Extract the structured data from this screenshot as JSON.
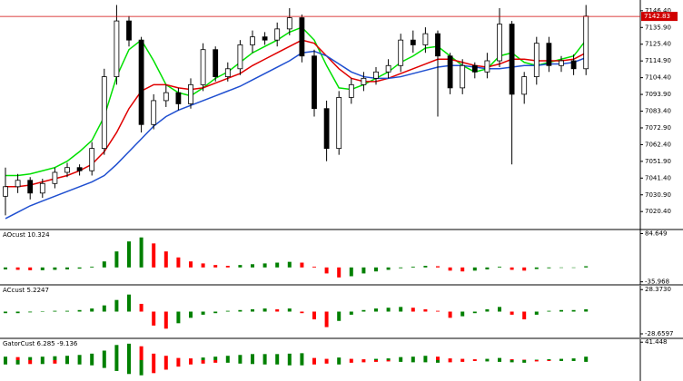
{
  "chart_data": [
    {
      "type": "candlestick",
      "open": [
        7030,
        7036,
        7040,
        7032,
        7038,
        7045,
        7048,
        7046,
        7060,
        7105,
        7140,
        7128,
        7075,
        7090,
        7095,
        7088,
        7100,
        7122,
        7105,
        7110,
        7125,
        7130,
        7128,
        7135,
        7142,
        7118,
        7085,
        7060,
        7092,
        7100,
        7104,
        7108,
        7112,
        7128,
        7125,
        7132,
        7118,
        7098,
        7112,
        7108,
        7115,
        7138,
        7094,
        7105,
        7126,
        7112,
        7115,
        7110
      ],
      "high": [
        7048,
        7044,
        7042,
        7041,
        7048,
        7051,
        7050,
        7064,
        7110,
        7150,
        7143,
        7130,
        7094,
        7100,
        7098,
        7104,
        7126,
        7124,
        7114,
        7128,
        7134,
        7133,
        7139,
        7148,
        7144,
        7122,
        7090,
        7096,
        7104,
        7108,
        7111,
        7116,
        7132,
        7134,
        7136,
        7134,
        7120,
        7116,
        7114,
        7120,
        7148,
        7140,
        7108,
        7130,
        7130,
        7118,
        7119,
        7150
      ],
      "low": [
        7018,
        7032,
        7028,
        7029,
        7035,
        7042,
        7043,
        7043,
        7056,
        7100,
        7124,
        7070,
        7072,
        7086,
        7084,
        7085,
        7096,
        7102,
        7102,
        7106,
        7120,
        7125,
        7124,
        7131,
        7114,
        7080,
        7052,
        7056,
        7088,
        7096,
        7100,
        7104,
        7108,
        7120,
        7120,
        7080,
        7094,
        7094,
        7104,
        7104,
        7111,
        7050,
        7088,
        7100,
        7108,
        7108,
        7106,
        7106
      ],
      "close": [
        7036,
        7040,
        7032,
        7038,
        7045,
        7048,
        7046,
        7060,
        7105,
        7140,
        7128,
        7075,
        7090,
        7095,
        7088,
        7100,
        7122,
        7105,
        7110,
        7125,
        7130,
        7128,
        7135,
        7142,
        7118,
        7085,
        7060,
        7092,
        7100,
        7104,
        7108,
        7112,
        7128,
        7125,
        7132,
        7118,
        7098,
        7112,
        7108,
        7115,
        7138,
        7094,
        7105,
        7126,
        7112,
        7115,
        7110,
        7143
      ],
      "up_color": "#ffffff",
      "down_color": "#000000",
      "series": [
        {
          "color": "#00e000",
          "values": [
            7043,
            7043,
            7044,
            7046,
            7048,
            7052,
            7058,
            7065,
            7080,
            7105,
            7122,
            7128,
            7115,
            7100,
            7095,
            7093,
            7098,
            7104,
            7108,
            7114,
            7120,
            7124,
            7128,
            7133,
            7136,
            7128,
            7112,
            7098,
            7097,
            7100,
            7104,
            7108,
            7114,
            7118,
            7123,
            7124,
            7118,
            7112,
            7108,
            7110,
            7118,
            7120,
            7114,
            7112,
            7114,
            7116,
            7118,
            7128
          ]
        },
        {
          "color": "#e00000",
          "values": [
            7036,
            7036,
            7037,
            7039,
            7041,
            7043,
            7046,
            7050,
            7058,
            7070,
            7085,
            7096,
            7100,
            7100,
            7098,
            7097,
            7098,
            7101,
            7104,
            7107,
            7112,
            7116,
            7120,
            7124,
            7128,
            7126,
            7118,
            7110,
            7104,
            7102,
            7102,
            7104,
            7107,
            7110,
            7113,
            7116,
            7116,
            7114,
            7112,
            7111,
            7113,
            7116,
            7116,
            7115,
            7115,
            7115,
            7116,
            7120
          ]
        },
        {
          "color": "#1f4fd0",
          "values": [
            7016,
            7020,
            7024,
            7027,
            7030,
            7033,
            7036,
            7039,
            7043,
            7050,
            7058,
            7066,
            7074,
            7080,
            7084,
            7087,
            7090,
            7093,
            7096,
            7099,
            7103,
            7107,
            7111,
            7115,
            7120,
            7121,
            7118,
            7113,
            7108,
            7105,
            7104,
            7104,
            7105,
            7107,
            7109,
            7111,
            7112,
            7112,
            7111,
            7110,
            7110,
            7111,
            7112,
            7112,
            7113,
            7113,
            7114,
            7117
          ]
        }
      ],
      "price_line": 7142.83,
      "price_line_color": "#d00000",
      "ylim": [
        7009.7,
        7152.0
      ],
      "yticks": [
        {
          "value": 7146.4,
          "label": "7146.40"
        },
        {
          "value": 7135.9,
          "label": "7135.90"
        },
        {
          "value": 7125.4,
          "label": "7125.40"
        },
        {
          "value": 7114.9,
          "label": "7114.90"
        },
        {
          "value": 7104.4,
          "label": "7104.40"
        },
        {
          "value": 7093.9,
          "label": "7093.90"
        },
        {
          "value": 7083.4,
          "label": "7083.40"
        },
        {
          "value": 7072.9,
          "label": "7072.90"
        },
        {
          "value": 7062.4,
          "label": "7062.40"
        },
        {
          "value": 7051.9,
          "label": "7051.90"
        },
        {
          "value": 7041.4,
          "label": "7041.40"
        },
        {
          "value": 7030.9,
          "label": "7030.90"
        },
        {
          "value": 7020.4,
          "label": "7020.40"
        }
      ]
    },
    {
      "type": "bar",
      "title": "AOcust 10.324",
      "values": [
        -5,
        -6,
        -7,
        -7,
        -6,
        -5,
        -3,
        2,
        15,
        40,
        65,
        75,
        60,
        40,
        25,
        15,
        10,
        6,
        4,
        6,
        8,
        10,
        12,
        14,
        12,
        2,
        -15,
        -25,
        -22,
        -15,
        -10,
        -6,
        -2,
        2,
        4,
        3,
        -8,
        -10,
        -8,
        -5,
        2,
        -6,
        -8,
        -4,
        -2,
        -1,
        0,
        3
      ],
      "up_color": "#008000",
      "down_color": "#ff0000",
      "ylim": [
        -39.0,
        88.0
      ],
      "yticks": [
        84.649,
        -35.968
      ]
    },
    {
      "type": "bar",
      "title": "ACcust 5.2247",
      "values": [
        -2,
        -2,
        -1,
        0,
        1,
        1,
        2,
        4,
        8,
        15,
        22,
        10,
        -18,
        -22,
        -15,
        -8,
        -4,
        -2,
        1,
        2,
        3,
        4,
        3,
        4,
        -2,
        -10,
        -20,
        -12,
        -4,
        2,
        4,
        5,
        6,
        5,
        3,
        1,
        -8,
        -6,
        -2,
        3,
        6,
        -4,
        -10,
        -4,
        1,
        2,
        2,
        3
      ],
      "up_color": "#008000",
      "down_color": "#ff0000",
      "ylim": [
        -31.0,
        31.0
      ],
      "yticks": [
        {
          "value": 28.373,
          "label": "28.3730"
        },
        -28.6597
      ]
    },
    {
      "type": "gator",
      "title": "GatorCust 6.285 -9.136",
      "series": [
        {
          "values": [
            8,
            7,
            7,
            8,
            9,
            10,
            12,
            15,
            22,
            35,
            38,
            32,
            15,
            10,
            5,
            4,
            6,
            8,
            10,
            12,
            14,
            14,
            14,
            15,
            16,
            5,
            3,
            6,
            3,
            2,
            3,
            4,
            7,
            8,
            10,
            8,
            4,
            3,
            2,
            3,
            5,
            2,
            1,
            1,
            2,
            3,
            4,
            8
          ]
        },
        {
          "values": [
            -10,
            -10,
            -9,
            -9,
            -8,
            -9,
            -10,
            -12,
            -18,
            -25,
            -32,
            -35,
            -30,
            -22,
            -15,
            -10,
            -8,
            -6,
            -6,
            -8,
            -9,
            -10,
            -10,
            -12,
            -12,
            -10,
            -8,
            -10,
            -6,
            -5,
            -4,
            -3,
            -4,
            -5,
            -5,
            -6,
            -5,
            -4,
            -2,
            -3,
            -4,
            -5,
            -6,
            -3,
            -2,
            -2,
            -2,
            -4
          ]
        }
      ],
      "up_color": "#008000",
      "down_color": "#ff0000",
      "ylim": [
        -44.0,
        44.0
      ],
      "yticks": [
        41.448
      ]
    }
  ]
}
